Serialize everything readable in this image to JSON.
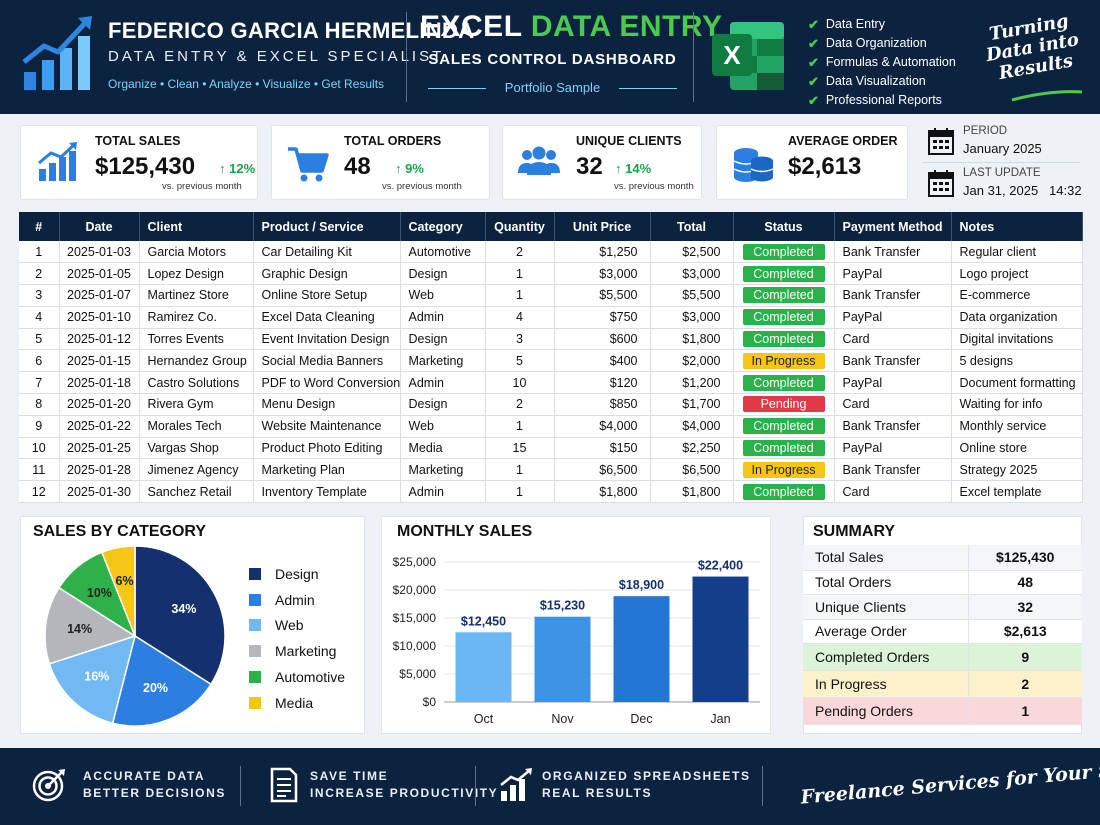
{
  "header": {
    "name": "FEDERICO GARCIA HERMELINDA",
    "role": "DATA ENTRY & EXCEL SPECIALIST",
    "tagline": "Organize • Clean • Analyze • Visualize • Get Results",
    "title_part1": "EXCEL",
    "title_part2": "DATA ENTRY",
    "subtitle": "SALES CONTROL DASHBOARD",
    "sample": "Portfolio Sample",
    "features": [
      "Data Entry",
      "Data Organization",
      "Formulas & Automation",
      "Data Visualization",
      "Professional Reports"
    ],
    "script_lines": [
      "Turning",
      "Data into",
      "Results"
    ],
    "accent": "#4cc94f"
  },
  "kpis": [
    {
      "label": "TOTAL SALES",
      "value": "$125,430",
      "change": "12%",
      "compare": "vs. previous month",
      "icon": "bar-chart-icon"
    },
    {
      "label": "TOTAL ORDERS",
      "value": "48",
      "change": "9%",
      "compare": "vs. previous month",
      "icon": "cart-icon"
    },
    {
      "label": "UNIQUE CLIENTS",
      "value": "32",
      "change": "14%",
      "compare": "vs. previous month",
      "icon": "users-icon"
    },
    {
      "label": "AVERAGE ORDER",
      "value": "$2,613",
      "icon": "coins-icon"
    }
  ],
  "period": {
    "label": "PERIOD",
    "value": "January 2025",
    "update_label": "LAST UPDATE",
    "update_value": "Jan 31, 2025   14:32"
  },
  "table": {
    "headers": [
      "#",
      "Date",
      "Client",
      "Product / Service",
      "Category",
      "Quantity",
      "Unit Price",
      "Total",
      "Status",
      "Payment Method",
      "Notes"
    ],
    "rows": [
      {
        "n": "1",
        "date": "2025-01-03",
        "client": "Garcia Motors",
        "product": "Car Detailing Kit",
        "category": "Automotive",
        "qty": "2",
        "price": "$1,250",
        "total": "$2,500",
        "status": "Completed",
        "payment": "Bank Transfer",
        "notes": "Regular client"
      },
      {
        "n": "2",
        "date": "2025-01-05",
        "client": "Lopez Design",
        "product": "Graphic Design",
        "category": "Design",
        "qty": "1",
        "price": "$3,000",
        "total": "$3,000",
        "status": "Completed",
        "payment": "PayPal",
        "notes": "Logo project"
      },
      {
        "n": "3",
        "date": "2025-01-07",
        "client": "Martinez Store",
        "product": "Online Store Setup",
        "category": "Web",
        "qty": "1",
        "price": "$5,500",
        "total": "$5,500",
        "status": "Completed",
        "payment": "Bank Transfer",
        "notes": "E-commerce"
      },
      {
        "n": "4",
        "date": "2025-01-10",
        "client": "Ramirez Co.",
        "product": "Excel Data Cleaning",
        "category": "Admin",
        "qty": "4",
        "price": "$750",
        "total": "$3,000",
        "status": "Completed",
        "payment": "PayPal",
        "notes": "Data organization"
      },
      {
        "n": "5",
        "date": "2025-01-12",
        "client": "Torres Events",
        "product": "Event Invitation Design",
        "category": "Design",
        "qty": "3",
        "price": "$600",
        "total": "$1,800",
        "status": "Completed",
        "payment": "Card",
        "notes": "Digital invitations"
      },
      {
        "n": "6",
        "date": "2025-01-15",
        "client": "Hernandez Group",
        "product": "Social Media Banners",
        "category": "Marketing",
        "qty": "5",
        "price": "$400",
        "total": "$2,000",
        "status": "In Progress",
        "payment": "Bank Transfer",
        "notes": "5 designs"
      },
      {
        "n": "7",
        "date": "2025-01-18",
        "client": "Castro Solutions",
        "product": "PDF to Word Conversion",
        "category": "Admin",
        "qty": "10",
        "price": "$120",
        "total": "$1,200",
        "status": "Completed",
        "payment": "PayPal",
        "notes": "Document formatting"
      },
      {
        "n": "8",
        "date": "2025-01-20",
        "client": "Rivera Gym",
        "product": "Menu Design",
        "category": "Design",
        "qty": "2",
        "price": "$850",
        "total": "$1,700",
        "status": "Pending",
        "payment": "Card",
        "notes": "Waiting for info"
      },
      {
        "n": "9",
        "date": "2025-01-22",
        "client": "Morales Tech",
        "product": "Website Maintenance",
        "category": "Web",
        "qty": "1",
        "price": "$4,000",
        "total": "$4,000",
        "status": "Completed",
        "payment": "Bank Transfer",
        "notes": "Monthly service"
      },
      {
        "n": "10",
        "date": "2025-01-25",
        "client": "Vargas Shop",
        "product": "Product Photo Editing",
        "category": "Media",
        "qty": "15",
        "price": "$150",
        "total": "$2,250",
        "status": "Completed",
        "payment": "PayPal",
        "notes": "Online store"
      },
      {
        "n": "11",
        "date": "2025-01-28",
        "client": "Jimenez Agency",
        "product": "Marketing Plan",
        "category": "Marketing",
        "qty": "1",
        "price": "$6,500",
        "total": "$6,500",
        "status": "In Progress",
        "payment": "Bank Transfer",
        "notes": "Strategy 2025"
      },
      {
        "n": "12",
        "date": "2025-01-30",
        "client": "Sanchez Retail",
        "product": "Inventory Template",
        "category": "Admin",
        "qty": "1",
        "price": "$1,800",
        "total": "$1,800",
        "status": "Completed",
        "payment": "Card",
        "notes": "Excel template"
      }
    ]
  },
  "status_colors": {
    "Completed": "#27b34a",
    "In Progress": "#f5c518",
    "Pending": "#e03a48"
  },
  "category_chart": {
    "title": "SALES BY CATEGORY",
    "chart_data": {
      "type": "pie",
      "labels": [
        "Design",
        "Admin",
        "Web",
        "Marketing",
        "Automotive",
        "Media"
      ],
      "values": [
        34,
        20,
        16,
        14,
        10,
        6
      ],
      "value_labels": [
        "34%",
        "20%",
        "16%",
        "14%",
        "10%",
        "6%"
      ],
      "colors": [
        "#14306e",
        "#2a7fe0",
        "#72b8f2",
        "#b3b6bb",
        "#2eb148",
        "#f5c518"
      ]
    }
  },
  "monthly_chart": {
    "title": "MONTHLY SALES",
    "chart_data": {
      "type": "bar",
      "categories": [
        "Oct",
        "Nov",
        "Dec",
        "Jan"
      ],
      "values": [
        12450,
        15230,
        18900,
        22400
      ],
      "value_labels": [
        "$12,450",
        "$15,230",
        "$18,900",
        "$22,400"
      ],
      "ylim": [
        0,
        25000
      ],
      "yticks": [
        "$0",
        "$5,000",
        "$10,000",
        "$15,000",
        "$20,000",
        "$25,000"
      ],
      "colors": [
        "#6ab7f4",
        "#3c93e3",
        "#2277d6",
        "#123e8c"
      ],
      "label_color": "#14306e"
    }
  },
  "summary": {
    "title": "SUMMARY",
    "rows": [
      {
        "label": "Total Sales",
        "value": "$125,430",
        "bg": "#f3f5f8"
      },
      {
        "label": "Total Orders",
        "value": "48",
        "bg": "#ffffff"
      },
      {
        "label": "Unique Clients",
        "value": "32",
        "bg": "#f3f5f8"
      },
      {
        "label": "Average Order",
        "value": "$2,613",
        "bg": "#ffffff"
      },
      {
        "label": "Completed Orders",
        "value": "9",
        "bg": "#dcf3d7"
      },
      {
        "label": "In Progress",
        "value": "2",
        "bg": "#fdf1cc"
      },
      {
        "label": "Pending Orders",
        "value": "1",
        "bg": "#f9d7da"
      }
    ]
  },
  "footer": {
    "items": [
      {
        "line1": "ACCURATE DATA",
        "line2": "BETTER DECISIONS",
        "icon": "target-icon"
      },
      {
        "line1": "SAVE TIME",
        "line2": "INCREASE PRODUCTIVITY",
        "icon": "document-icon"
      },
      {
        "line1": "ORGANIZED SPREADSHEETS",
        "line2": "REAL RESULTS",
        "icon": "growth-chart-icon"
      }
    ],
    "script": "Freelance Services for Your Success"
  }
}
